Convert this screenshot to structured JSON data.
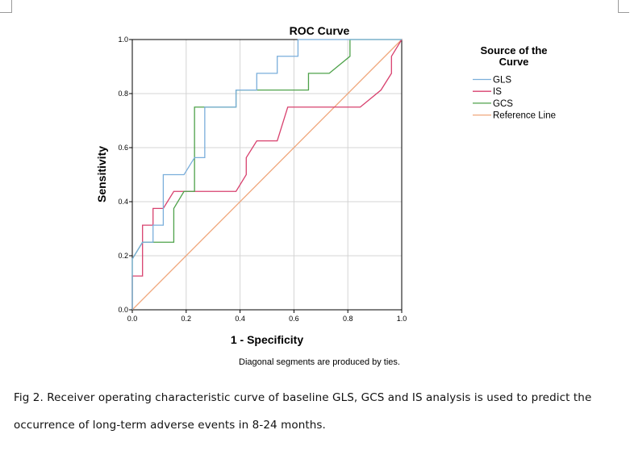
{
  "chart_data": {
    "type": "line",
    "title": "ROC Curve",
    "xlabel": "1 - Specificity",
    "ylabel": "Sensitivity",
    "xlim": [
      0,
      1
    ],
    "ylim": [
      0,
      1
    ],
    "xticks": [
      "0.0",
      "0.2",
      "0.4",
      "0.6",
      "0.8",
      "1.0"
    ],
    "yticks": [
      "0.0",
      "0.2",
      "0.4",
      "0.6",
      "0.8",
      "1.0"
    ],
    "grid": true,
    "note": "Diagonal segments are produced by ties.",
    "legend": {
      "title": "Source of the Curve",
      "placement": "right"
    },
    "series": [
      {
        "name": "GLS",
        "color": "#7aaedb",
        "x": [
          0,
          0,
          0.038,
          0.038,
          0.077,
          0.077,
          0.115,
          0.115,
          0.192,
          0.231,
          0.231,
          0.269,
          0.269,
          0.385,
          0.385,
          0.462,
          0.462,
          0.538,
          0.538,
          0.615,
          0.615,
          1.0
        ],
        "y": [
          0,
          0.188,
          0.25,
          0.25,
          0.25,
          0.313,
          0.313,
          0.5,
          0.5,
          0.563,
          0.563,
          0.563,
          0.75,
          0.75,
          0.813,
          0.813,
          0.875,
          0.875,
          0.938,
          0.938,
          1.0,
          1.0
        ]
      },
      {
        "name": "IS",
        "color": "#d8416e",
        "x": [
          0,
          0,
          0.038,
          0.038,
          0.077,
          0.077,
          0.115,
          0.154,
          0.385,
          0.423,
          0.423,
          0.462,
          0.538,
          0.577,
          0.846,
          0.923,
          0.962,
          0.962,
          1.0
        ],
        "y": [
          0,
          0.125,
          0.125,
          0.313,
          0.313,
          0.375,
          0.375,
          0.438,
          0.438,
          0.5,
          0.563,
          0.625,
          0.625,
          0.75,
          0.75,
          0.813,
          0.875,
          0.938,
          1.0
        ]
      },
      {
        "name": "GCS",
        "color": "#4ea24a",
        "x": [
          0,
          0,
          0.038,
          0.154,
          0.154,
          0.192,
          0.231,
          0.231,
          0.385,
          0.385,
          0.654,
          0.654,
          0.731,
          0.808,
          0.808,
          1.0
        ],
        "y": [
          0,
          0.188,
          0.25,
          0.25,
          0.375,
          0.438,
          0.438,
          0.75,
          0.75,
          0.813,
          0.813,
          0.875,
          0.875,
          0.938,
          1.0,
          1.0
        ]
      },
      {
        "name": "Reference Line",
        "color": "#f0a77c",
        "x": [
          0,
          1
        ],
        "y": [
          0,
          1
        ]
      }
    ]
  },
  "caption": "Fig 2. Receiver operating characteristic curve of baseline GLS, GCS and IS analysis is used to predict the occurrence of long-term adverse events in 8-24 months."
}
